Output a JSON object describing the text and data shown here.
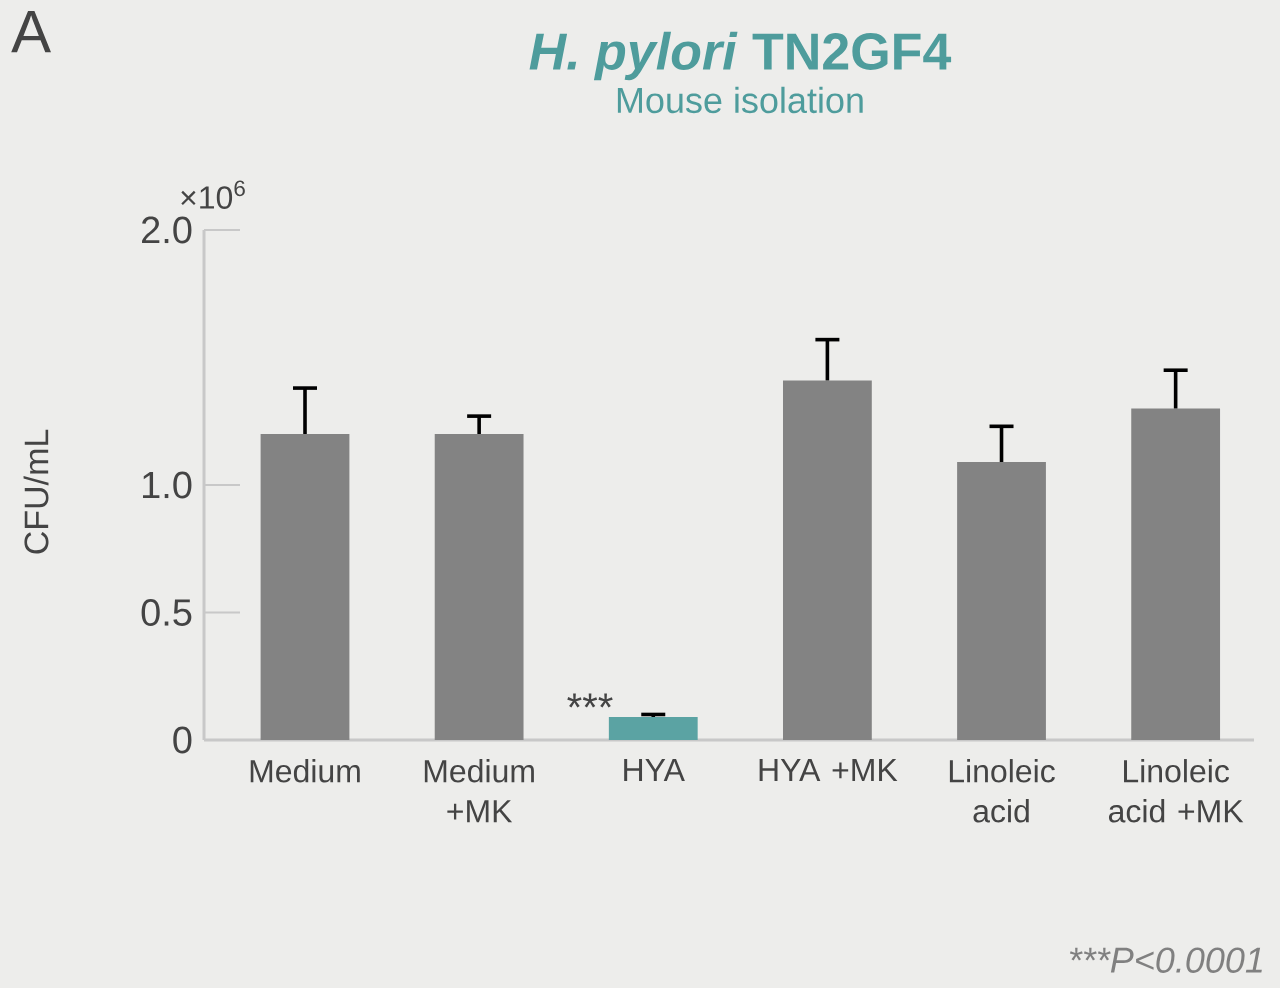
{
  "chart_data": {
    "type": "bar",
    "title": "*H. pylori*  TN2GF4",
    "subtitle": "Mouse isolation",
    "ylabel": "CFU/mL",
    "categories": [
      "Medium",
      "Medium +MK",
      "HYA",
      "HYA +MK",
      "Linoleic acid",
      "Linoleic acid +MK"
    ],
    "values": [
      1.2,
      1.2,
      0.09,
      1.41,
      1.09,
      1.3
    ],
    "errors": [
      [
        1.2,
        1.38
      ],
      [
        1.2,
        1.27
      ],
      [
        0.09,
        0.1
      ],
      [
        1.41,
        1.57
      ],
      [
        1.09,
        1.23
      ],
      [
        1.3,
        1.45
      ]
    ],
    "colors": [
      "#838383",
      "#838383",
      "#5ba3a3",
      "#838383",
      "#838383",
      "#838383"
    ],
    "ylim": [
      0,
      2.0
    ],
    "yticks": [
      0,
      {
        "value": 0.5,
        "label": "0.5"
      },
      {
        "value": 1,
        "label": "1.0"
      },
      {
        "value": 2,
        "label": "2.0"
      }
    ],
    "grid": false,
    "annotations": [
      "A",
      "×10$^{6}$",
      "***",
      "***P<0.0001"
    ]
  }
}
